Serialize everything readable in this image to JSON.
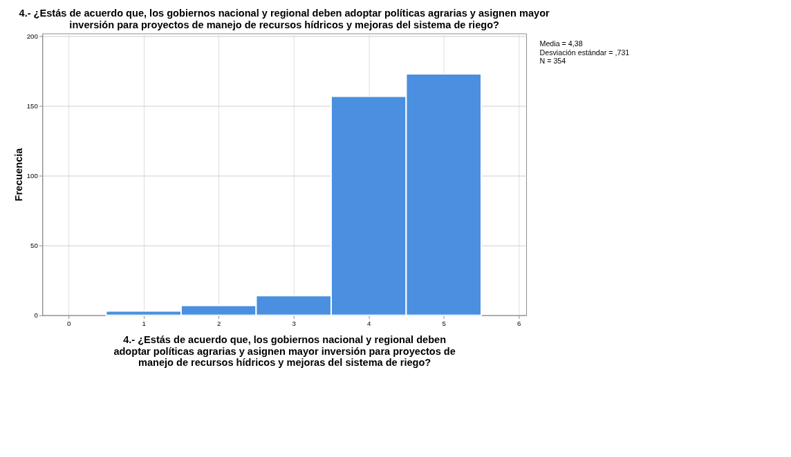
{
  "chart_data": {
    "type": "histogram",
    "title": "4.- ¿Estás de acuerdo que, los gobiernos nacional y regional deben adoptar políticas agrarias y asignen mayor inversión para proyectos de manejo de recursos hídricos y mejoras del sistema de riego?",
    "xlabel": "4.- ¿Estás de acuerdo que, los gobiernos nacional y regional deben adoptar políticas agrarias y asignen mayor inversión para proyectos de manejo de recursos hídricos y mejoras del sistema de riego?",
    "ylabel": "Frecuencia",
    "bins": [
      0.5,
      1.5,
      2.5,
      3.5,
      4.5,
      5.5
    ],
    "values": [
      3,
      7,
      14,
      157,
      173
    ],
    "color": "#4a8fe0",
    "xlim": [
      -0.35,
      6.1
    ],
    "xticks": [
      0,
      1,
      2,
      3,
      4,
      5,
      6
    ],
    "ylim": [
      0,
      202
    ],
    "yticks": [
      0,
      50,
      100,
      150,
      200
    ],
    "grid": true,
    "annotations": [
      "Media = 4,38",
      "Desviación estándar = ,731",
      "N = 354"
    ]
  }
}
